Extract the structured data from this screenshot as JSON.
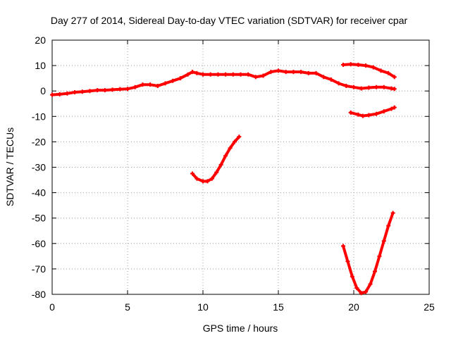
{
  "chart_data": {
    "type": "line",
    "title": "Day 277 of 2014, Sidereal Day-to-day VTEC variation (SDTVAR) for receiver cpar",
    "xlabel": "GPS time / hours",
    "ylabel": "SDTVAR / TECUs",
    "xlim": [
      0,
      25
    ],
    "ylim": [
      -80,
      20
    ],
    "xticks": [
      0,
      5,
      10,
      15,
      20,
      25
    ],
    "yticks": [
      -80,
      -70,
      -60,
      -50,
      -40,
      -30,
      -20,
      -10,
      0,
      10,
      20
    ],
    "grid": true,
    "color": "#ff0000",
    "series": [
      {
        "name": "main",
        "x": [
          0,
          0.5,
          1,
          1.5,
          2,
          2.5,
          3,
          3.5,
          4,
          4.5,
          5,
          5.5,
          6,
          6.5,
          7,
          7.5,
          8,
          8.5,
          9,
          9.3,
          9.6,
          10,
          10.5,
          11,
          11.5,
          12,
          12.5,
          13,
          13.5,
          14,
          14.5,
          15,
          15.5,
          16,
          16.5,
          17,
          17.5,
          18,
          18.5,
          19,
          19.5,
          20,
          20.5,
          21,
          21.5,
          22,
          22.5,
          22.7
        ],
        "y": [
          -1.5,
          -1.3,
          -1,
          -0.5,
          -0.3,
          0,
          0.3,
          0.3,
          0.5,
          0.7,
          0.8,
          1.5,
          2.5,
          2.5,
          2,
          3,
          4,
          5,
          6.5,
          7.5,
          7,
          6.5,
          6.5,
          6.5,
          6.5,
          6.5,
          6.5,
          6.5,
          5.5,
          6,
          7.5,
          8,
          7.5,
          7.5,
          7.5,
          7,
          7,
          5.5,
          4.5,
          3,
          2,
          1.5,
          1,
          1.3,
          1.5,
          1.5,
          1,
          0.8
        ]
      },
      {
        "name": "upper-right",
        "x": [
          19.3,
          19.8,
          20.3,
          20.8,
          21.3,
          21.8,
          22.3,
          22.7
        ],
        "y": [
          10.3,
          10.5,
          10.3,
          10,
          9.3,
          8,
          7,
          5.5
        ]
      },
      {
        "name": "lower-right",
        "x": [
          19.8,
          20.3,
          20.6,
          21,
          21.5,
          22,
          22.5,
          22.7
        ],
        "y": [
          -8.5,
          -9.3,
          -9.8,
          -9.5,
          -9,
          -8,
          -7,
          -6.5
        ]
      },
      {
        "name": "middle-dip",
        "x": [
          9.3,
          9.6,
          10,
          10.3,
          10.6,
          10.9,
          11.2,
          11.5,
          11.8,
          12.1,
          12.4
        ],
        "y": [
          -32.5,
          -34.5,
          -35.5,
          -35.5,
          -34.5,
          -32,
          -29,
          -25.5,
          -22.5,
          -20,
          -18
        ]
      },
      {
        "name": "deep-dip",
        "x": [
          19.3,
          19.6,
          19.9,
          20.2,
          20.5,
          20.8,
          21.1,
          21.4,
          21.7,
          22,
          22.3,
          22.6
        ],
        "y": [
          -61,
          -67,
          -73,
          -77.5,
          -79.5,
          -79,
          -76,
          -71,
          -65,
          -59,
          -53,
          -48
        ]
      }
    ]
  }
}
